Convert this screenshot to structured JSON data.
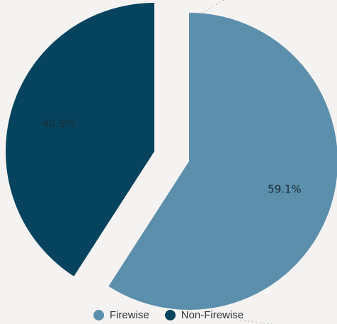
{
  "chart_data": {
    "type": "pie",
    "categories": [
      "Firewise",
      "Non-Firewise"
    ],
    "values": [
      59.1,
      40.9
    ],
    "labels": [
      "59.1%",
      "40.9%"
    ],
    "colors": [
      "#5b8fac",
      "#05435e"
    ],
    "legend_position": "bottom",
    "exploded": true
  },
  "legend": {
    "items": [
      {
        "label": "Firewise",
        "color": "#5b8fac"
      },
      {
        "label": "Non-Firewise",
        "color": "#05435e"
      }
    ]
  }
}
